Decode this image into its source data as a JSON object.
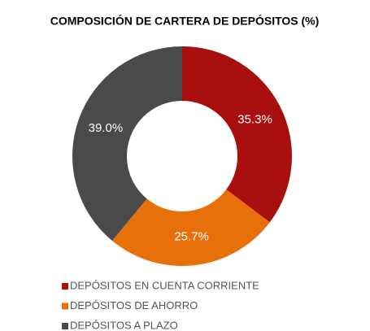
{
  "chart_data": {
    "type": "donut",
    "title": "COMPOSICIÓN DE CARTERA DE DEPÓSITOS (%)",
    "categories": [
      "DEPÓSITOS EN CUENTA CORRIENTE",
      "DEPÓSITOS DE AHORRO",
      "DEPÓSITOS A PLAZO"
    ],
    "values": [
      35.3,
      25.7,
      39.0
    ],
    "value_labels": [
      "35.3%",
      "25.7%",
      "39.0%"
    ],
    "colors": [
      "#a8100f",
      "#e8700a",
      "#4a4a4a"
    ],
    "legend": "bottom"
  }
}
